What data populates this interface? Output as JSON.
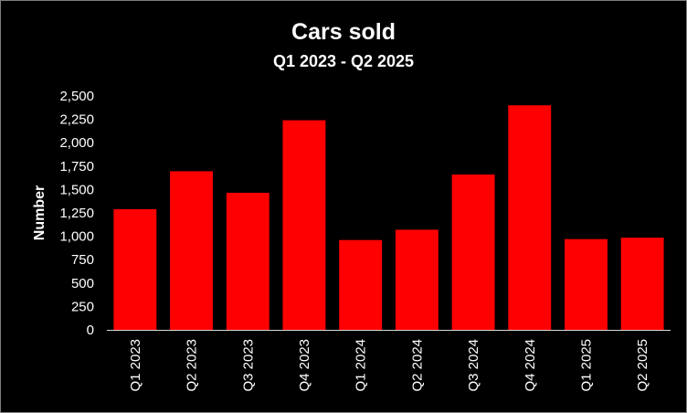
{
  "chart_data": {
    "type": "bar",
    "title": "Cars sold",
    "subtitle": "Q1 2023 - Q2 2025",
    "ylabel": "Number",
    "xlabel": "",
    "categories": [
      "Q1 2023",
      "Q2 2023",
      "Q3 2023",
      "Q4 2023",
      "Q1 2024",
      "Q2 2024",
      "Q3 2024",
      "Q4 2024",
      "Q1 2025",
      "Q2 2025"
    ],
    "values": [
      1290,
      1695,
      1465,
      2240,
      960,
      1070,
      1660,
      2400,
      970,
      985
    ],
    "ylim": [
      0,
      2500
    ],
    "yticks": [
      0,
      250,
      500,
      750,
      1000,
      1250,
      1500,
      1750,
      2000,
      2250,
      2500
    ],
    "ytick_labels": [
      "0",
      "250",
      "500",
      "750",
      "1,000",
      "1,250",
      "1,500",
      "1,750",
      "2,000",
      "2,250",
      "2,500"
    ],
    "grid": false,
    "legend": "none",
    "bar_color": "#ff0000",
    "background": "#000000",
    "text_color": "#ffffff"
  }
}
